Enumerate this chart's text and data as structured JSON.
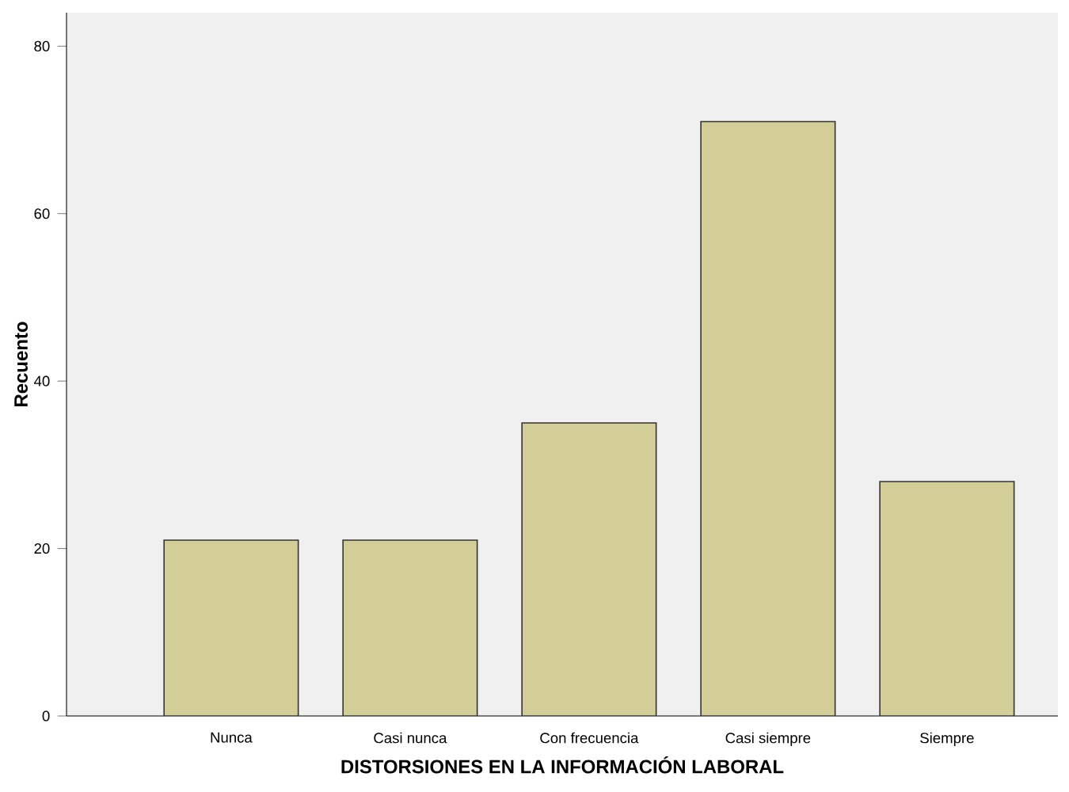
{
  "chart_data": {
    "type": "bar",
    "xlabel": "DISTORSIONES EN LA INFORMACIÓN LABORAL",
    "ylabel": "Recuento",
    "categories": [
      "Nunca",
      "Casi nunca",
      "Con frecuencia",
      "Casi siempre",
      "Siempre"
    ],
    "values": [
      21,
      21,
      35,
      71,
      28
    ],
    "color": "#d3ce98",
    "ylim": [
      0,
      84
    ],
    "yticks": [
      0,
      20,
      40,
      60,
      80
    ]
  }
}
